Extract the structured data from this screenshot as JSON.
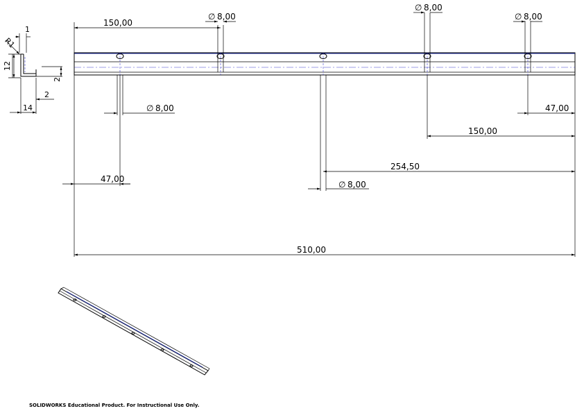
{
  "dimensions": {
    "top_left_150": "150,00",
    "hole_dia_1": "8,00",
    "hole_dia_2": "8,00",
    "hole_dia_3": "8,00",
    "bottom_hole_dia_1": "8,00",
    "bottom_hole_dia_2": "8,00",
    "right_47": "47,00",
    "right_150": "150,00",
    "mid_254": "254,50",
    "left_47": "47,00",
    "total_510": "510,00"
  },
  "diameter_symbol": "∅",
  "profile": {
    "r1": "R1",
    "t1": "1",
    "h12": "12",
    "d2a": "2",
    "d2b": "2",
    "w14": "14"
  },
  "footer_text": "SOLIDWORKS Educational Product. For Instructional Use Only.",
  "colors": {
    "outline": "#000000",
    "edge_blue": "#1a2a9c",
    "center_line": "#3a3acc"
  }
}
